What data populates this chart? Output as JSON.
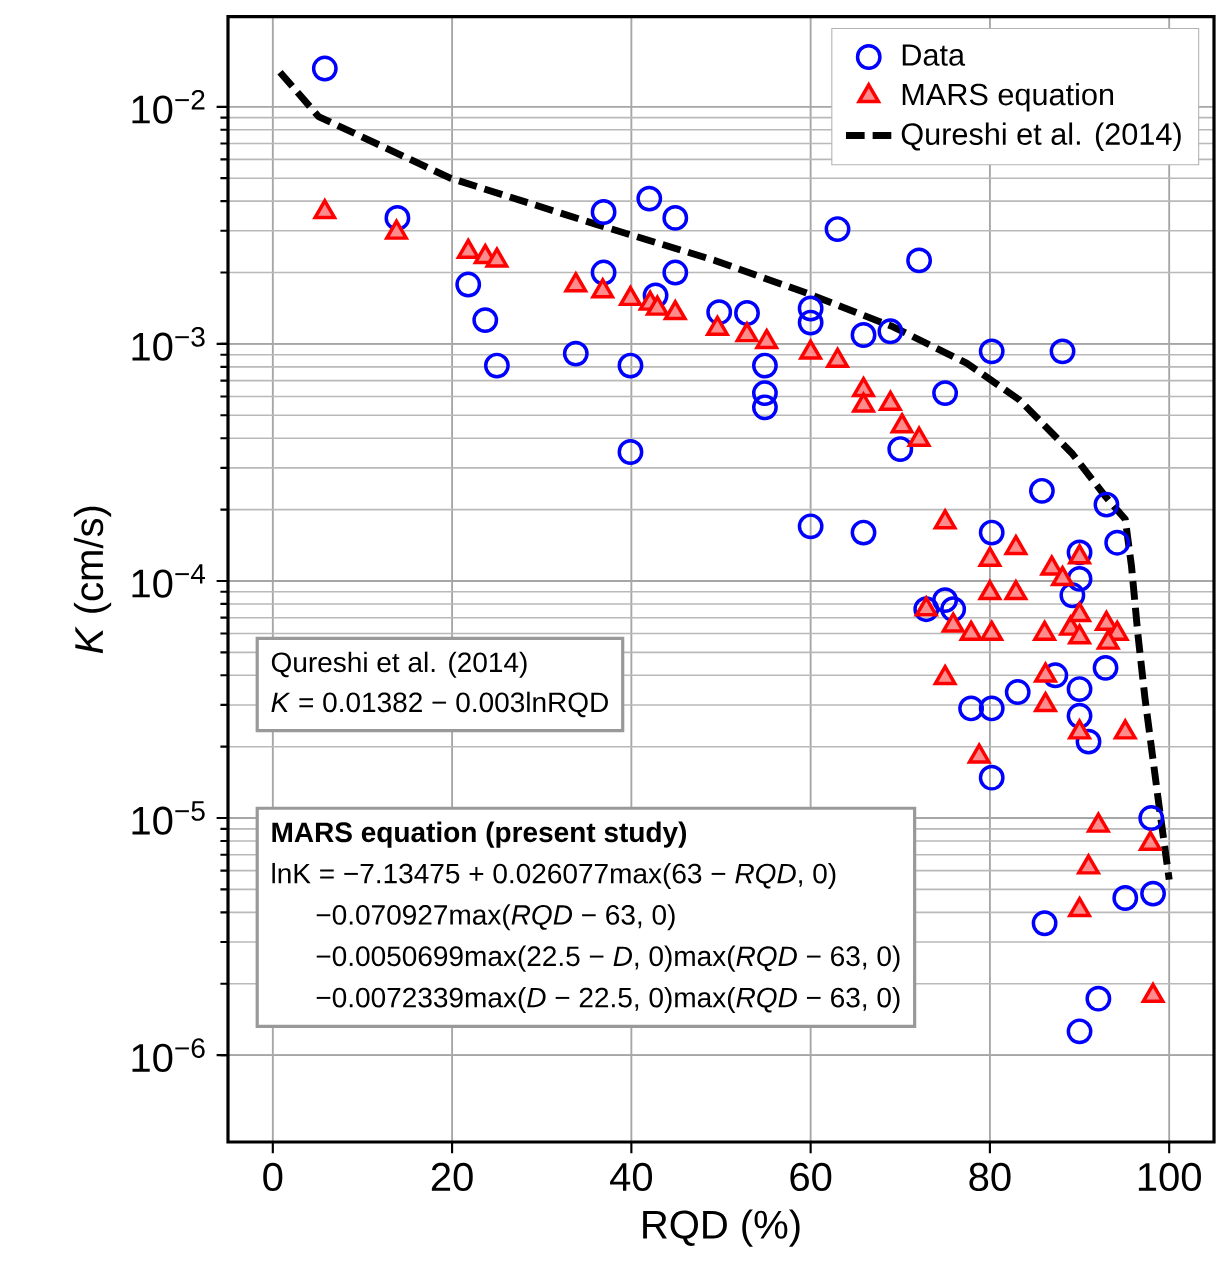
{
  "chart_data": {
    "type": "scatter",
    "xlabel": "RQD (%)",
    "ylabel": "*K* (cm/s)",
    "log": "y",
    "grid": true,
    "legend": "top right",
    "xlim": [
      -5,
      105
    ],
    "xticks": [
      0,
      20,
      40,
      60,
      80,
      100
    ],
    "ylim": [
      4.3e-07,
      0.024
    ],
    "yticks": [
      {
        "value": 1e-06,
        "label": "10$^{−6}$"
      },
      {
        "value": 1e-05,
        "label": "10$^{−5}$"
      },
      {
        "value": 0.0001,
        "label": "10$^{−4}$"
      },
      {
        "value": 0.001,
        "label": "10$^{−3}$"
      },
      {
        "value": 0.01,
        "label": "10$^{−2}$"
      }
    ],
    "series": [
      {
        "name": "Data",
        "marker": "circle",
        "color": "#0000ff",
        "x": [
          5.8,
          13.9,
          21.8,
          23.7,
          25,
          33.8,
          36.9,
          36.9,
          39.9,
          39.9,
          42,
          42.7,
          44.9,
          44.9,
          49.8,
          52.9,
          54.9,
          54.9,
          54.9,
          60,
          60,
          63,
          65.9,
          68.9,
          72.1,
          75,
          70,
          80.2,
          88.1,
          60,
          65.9,
          85.8,
          93,
          94.2,
          80.2,
          90,
          90,
          89.2,
          72.9,
          75,
          75.9,
          87.3,
          90,
          92.9,
          83.1,
          77.9,
          80.2,
          90,
          91,
          80.2,
          98,
          95.1,
          98.2,
          86.1,
          92.1,
          90
        ],
        "values": [
          0.0145,
          0.0034,
          0.00178,
          0.00126,
          0.00081,
          0.00091,
          0.0036,
          0.002,
          0.00081,
          0.00035,
          0.0041,
          0.0016,
          0.0034,
          0.002,
          0.00136,
          0.00135,
          0.00081,
          0.00062,
          0.00054,
          0.00141,
          0.00123,
          0.00305,
          0.00109,
          0.00113,
          0.00225,
          0.00062,
          0.00036,
          0.00093,
          0.00093,
          0.00017,
          0.00016,
          0.00024,
          0.00021,
          0.000145,
          0.00016,
          0.000132,
          0.000102,
          8.7e-05,
          7.6e-05,
          8.3e-05,
          7.6e-05,
          4e-05,
          3.5e-05,
          4.3e-05,
          3.4e-05,
          2.9e-05,
          2.9e-05,
          2.7e-05,
          2.1e-05,
          1.48e-05,
          1e-05,
          4.6e-06,
          4.8e-06,
          3.6e-06,
          1.73e-06,
          1.26e-06
        ]
      },
      {
        "name": "MARS equation",
        "marker": "triangle",
        "color": "#ff0000",
        "x": [
          5.8,
          13.8,
          21.8,
          23.7,
          25,
          33.8,
          36.8,
          39.9,
          42.1,
          42.9,
          44.9,
          49.6,
          52.9,
          55.1,
          60,
          63,
          65.9,
          65.9,
          68.9,
          70.2,
          72.1,
          75,
          80,
          82.9,
          86.9,
          88.1,
          90,
          80,
          82.9,
          72.9,
          75.9,
          77.9,
          80.2,
          86.1,
          89,
          90,
          90,
          93,
          94.2,
          93.2,
          75,
          86.2,
          86.2,
          90,
          95.1,
          78.8,
          92.1,
          97.9,
          91,
          90,
          98.2
        ],
        "values": [
          0.0036,
          0.00295,
          0.00245,
          0.00233,
          0.00225,
          0.00177,
          0.00167,
          0.00155,
          0.00148,
          0.00141,
          0.00135,
          0.00116,
          0.00109,
          0.00102,
          0.00092,
          0.00085,
          0.00064,
          0.00055,
          0.00056,
          0.00045,
          0.000395,
          0.000177,
          0.000123,
          0.000138,
          0.000113,
          0.000102,
          0.000126,
          8.9e-05,
          8.9e-05,
          7.6e-05,
          6.5e-05,
          6e-05,
          6e-05,
          6e-05,
          6.3e-05,
          7.2e-05,
          5.8e-05,
          6.6e-05,
          6e-05,
          5.5e-05,
          3.9e-05,
          4e-05,
          3e-05,
          2.3e-05,
          2.3e-05,
          1.82e-05,
          9.3e-06,
          7.8e-06,
          6.2e-06,
          4.1e-06,
          1.78e-06
        ]
      },
      {
        "name": "Qureshi et al. (2014)",
        "type": "line",
        "line_style": "dashed",
        "marker": "none",
        "color": "#000000",
        "x": [
          0.8,
          5.1,
          19.8,
          36,
          49.3,
          59.7,
          69.2,
          77.4,
          83.3,
          89.2,
          92.9,
          95.1,
          95.8,
          96.5,
          97.3,
          98.8,
          100
        ],
        "values": [
          0.014,
          0.0091,
          0.005,
          0.0032,
          0.00225,
          0.00163,
          0.00118,
          0.00083,
          0.00058,
          0.000344,
          0.000227,
          0.000182,
          0.000115,
          6e-05,
          3.2e-05,
          1.18e-05,
          5.5e-06
        ]
      }
    ],
    "annotations": [
      "Qureshi et al. (2014)",
      "*K* = 0.01382 − 0.003lnRQD",
      "MARS equation (present study)",
      "lnK = −7.13475 + 0.026077max(63 − *RQD*, 0)",
      "−0.070927max(*RQD* − 63, 0)",
      "−0.0050699max(22.5 − *D*, 0)max(*RQD* − 63, 0)",
      "−0.0072339max(*D* − 22.5, 0)max(*RQD* − 63, 0)"
    ]
  }
}
